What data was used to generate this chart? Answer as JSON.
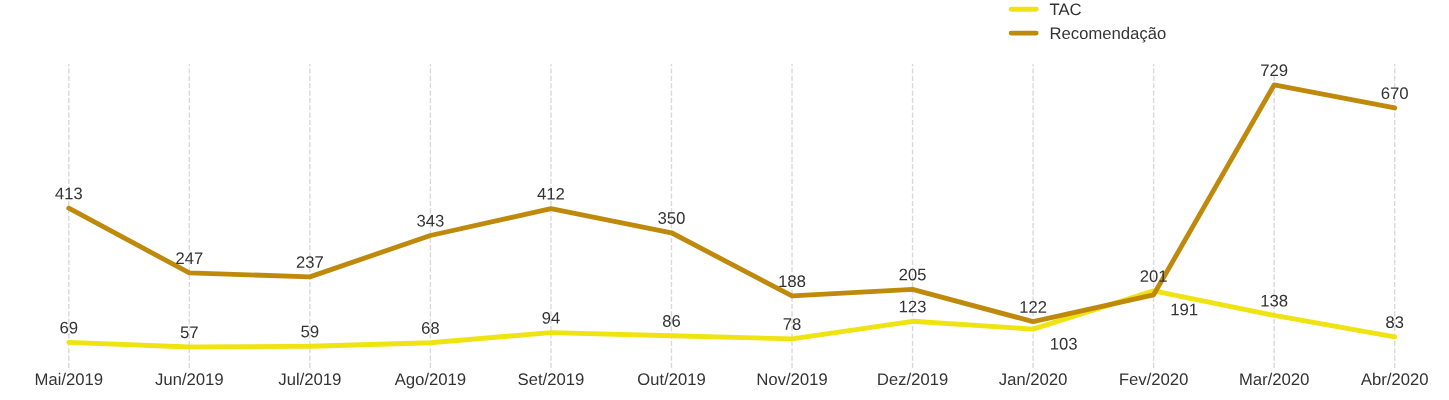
{
  "chart_data": {
    "type": "line",
    "categories": [
      "Mai/2019",
      "Jun/2019",
      "Jul/2019",
      "Ago/2019",
      "Set/2019",
      "Out/2019",
      "Nov/2019",
      "Dez/2019",
      "Jan/2020",
      "Fev/2020",
      "Mar/2020",
      "Abr/2020"
    ],
    "series": [
      {
        "name": "TAC",
        "color": "#efe312",
        "values": [
          69,
          57,
          59,
          68,
          94,
          86,
          78,
          123,
          103,
          201,
          138,
          83
        ]
      },
      {
        "name": "Recomendação",
        "color": "#bf8a0c",
        "values": [
          413,
          247,
          237,
          343,
          412,
          350,
          188,
          205,
          122,
          191,
          729,
          670
        ]
      }
    ],
    "data_labels": true,
    "grid": "x",
    "legend": "top right",
    "line_style": "solid",
    "marker": "none",
    "tick_labels": "x"
  }
}
